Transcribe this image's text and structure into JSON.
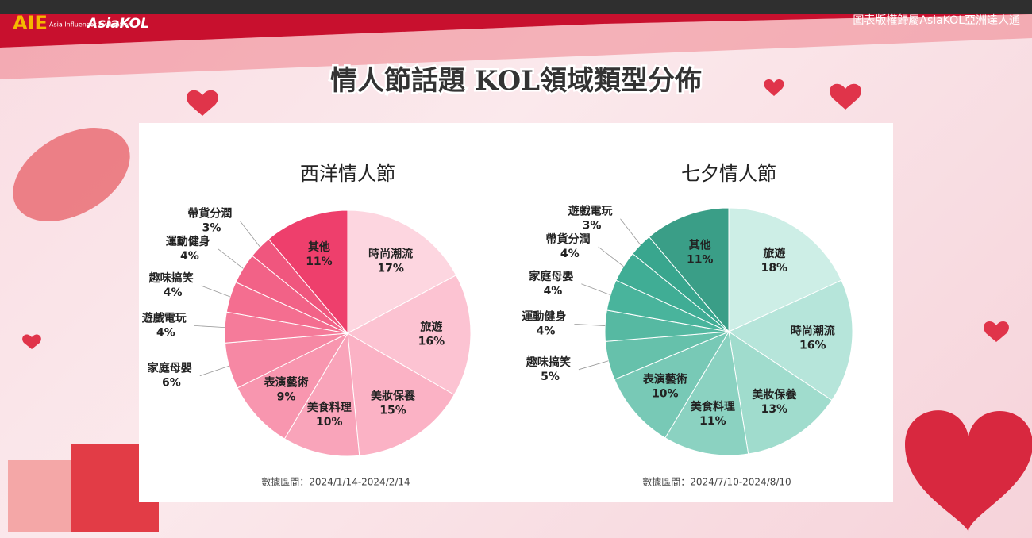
{
  "header": {
    "brand": "AIE",
    "brand_sub": "Asia Influencer Evaluation",
    "logo": "AsiaKOL",
    "copyright": "圖表版權歸屬AsiaKOL亞洲達人通",
    "title": "情人節話題 KOL領域類型分佈"
  },
  "chart_data": [
    {
      "type": "pie",
      "title": "西洋情人節",
      "note": "數據區間：2024/1/14-2024/2/14",
      "categories": [
        "時尚潮流",
        "旅遊",
        "美妝保養",
        "美食料理",
        "表演藝術",
        "家庭母嬰",
        "遊戲電玩",
        "趣味搞笑",
        "運動健身",
        "帶貨分潤",
        "其他"
      ],
      "values": [
        17,
        16,
        15,
        10,
        9,
        6,
        4,
        4,
        4,
        3,
        11
      ],
      "value_labels": [
        "17%",
        "16%",
        "15%",
        "10%",
        "9%",
        "6%",
        "4%",
        "4%",
        "4%",
        "3%",
        "11%"
      ],
      "colors": [
        "#fdd6e0",
        "#fcc3d2",
        "#fbb2c5",
        "#f9a4ba",
        "#f896af",
        "#f688a4",
        "#f57b9a",
        "#f46e90",
        "#f26287",
        "#f0567e",
        "#ee3f6c"
      ]
    },
    {
      "type": "pie",
      "title": "七夕情人節",
      "note": "數據區間：2024/7/10-2024/8/10",
      "categories": [
        "旅遊",
        "時尚潮流",
        "美妝保養",
        "美食料理",
        "表演藝術",
        "趣味搞笑",
        "運動健身",
        "家庭母嬰",
        "帶貨分潤",
        "遊戲電玩",
        "其他"
      ],
      "values": [
        18,
        16,
        13,
        11,
        10,
        5,
        4,
        4,
        4,
        3,
        11
      ],
      "value_labels": [
        "18%",
        "16%",
        "13%",
        "11%",
        "10%",
        "5%",
        "4%",
        "4%",
        "4%",
        "3%",
        "11%"
      ],
      "colors": [
        "#cdeee6",
        "#b6e5da",
        "#a0dccd",
        "#8bd2c1",
        "#78c9b6",
        "#66c1ab",
        "#56b9a2",
        "#49b49c",
        "#40ad95",
        "#39a68e",
        "#3a9e87"
      ]
    }
  ]
}
